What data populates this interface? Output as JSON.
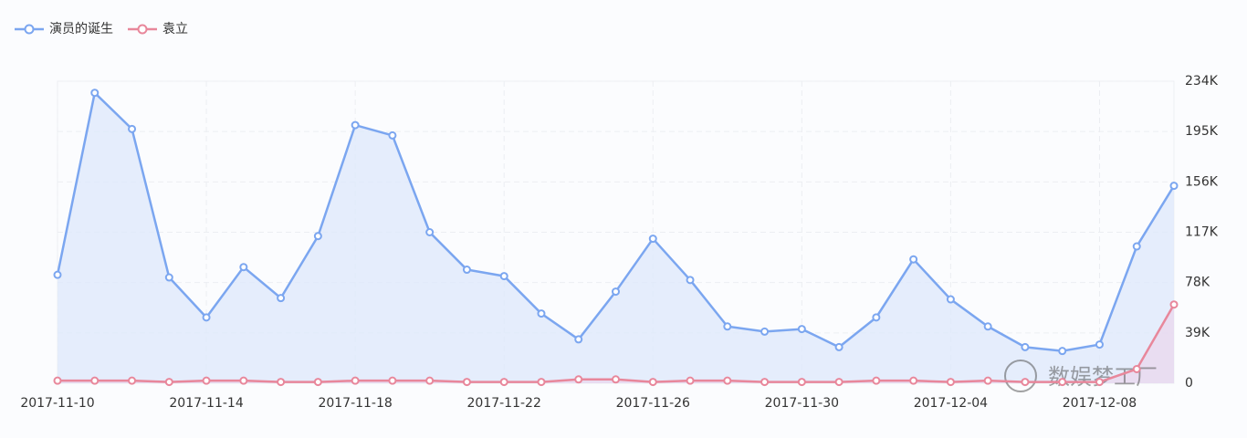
{
  "chart_data": {
    "type": "line",
    "categories": [
      "2017-11-10",
      null,
      null,
      null,
      "2017-11-14",
      null,
      null,
      null,
      "2017-11-18",
      null,
      null,
      null,
      "2017-11-22",
      null,
      null,
      null,
      "2017-11-26",
      null,
      null,
      null,
      "2017-11-30",
      null,
      null,
      null,
      "2017-12-04",
      null,
      null,
      null,
      "2017-12-08",
      null,
      null
    ],
    "series": [
      {
        "name": "演员的诞生",
        "color": "#7ba6f0",
        "area_color": "#dde8fb",
        "values": [
          84000,
          225000,
          197000,
          82000,
          51000,
          90000,
          66000,
          114000,
          200000,
          192000,
          117000,
          88000,
          83000,
          54000,
          34000,
          71000,
          112000,
          80000,
          44000,
          40000,
          42000,
          28000,
          51000,
          96000,
          65000,
          44000,
          28000,
          25000,
          30000,
          106000,
          153000
        ]
      },
      {
        "name": "袁立",
        "color": "#e8879b",
        "area_color": "#e9d7ee",
        "values": [
          2000,
          2000,
          2000,
          1000,
          2000,
          2000,
          1000,
          1000,
          2000,
          2000,
          2000,
          1000,
          1000,
          1000,
          3000,
          3000,
          1000,
          2000,
          2000,
          1000,
          1000,
          1000,
          2000,
          2000,
          1000,
          2000,
          1000,
          1000,
          1000,
          11000,
          61000
        ]
      }
    ],
    "ylim": [
      0,
      234000
    ],
    "yticks": [
      {
        "value": 0,
        "label": "0"
      },
      {
        "value": 39000,
        "label": "39K"
      },
      {
        "value": 78000,
        "label": "78K"
      },
      {
        "value": 117000,
        "label": "117K"
      },
      {
        "value": 156000,
        "label": "156K"
      },
      {
        "value": 195000,
        "label": "195K"
      },
      {
        "value": 234000,
        "label": "234K"
      }
    ],
    "grid": true,
    "legend": "top-left",
    "watermark": "数娱梦工厂"
  }
}
